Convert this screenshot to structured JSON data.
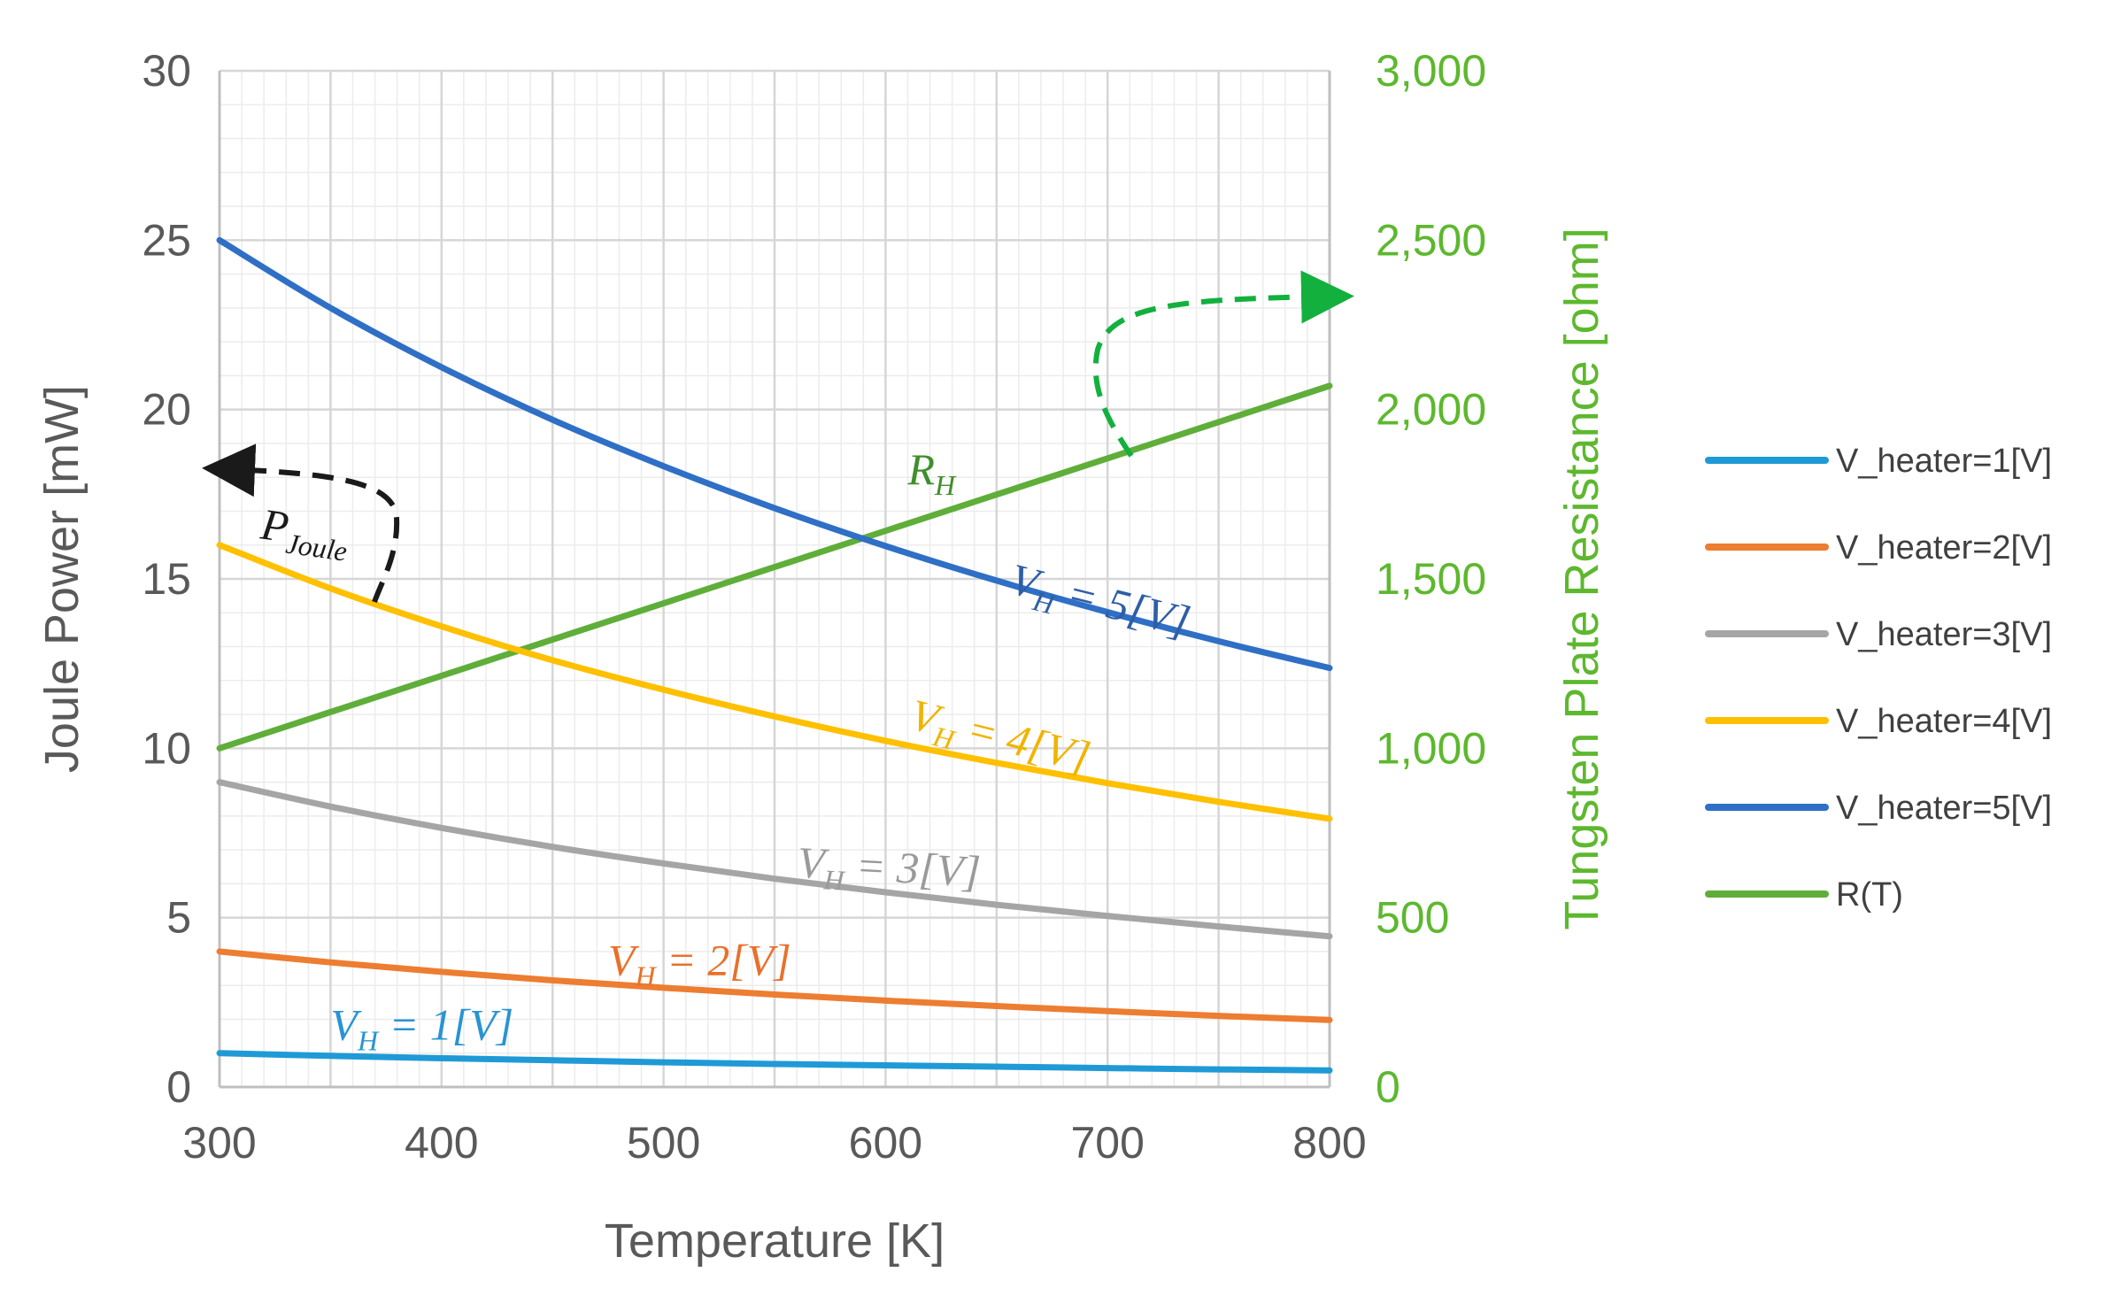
{
  "chart_data": {
    "type": "line",
    "xlabel": "Temperature [K]",
    "ylabel": "Joule Power [mW]",
    "y2label": "Tungsten Plate Resistance [ohm]",
    "xlim": [
      300,
      800
    ],
    "ylim": [
      0,
      30
    ],
    "y2lim": [
      0,
      3000
    ],
    "x_ticks": [
      "300",
      "400",
      "500",
      "600",
      "700",
      "800"
    ],
    "y_ticks": [
      "0",
      "5",
      "10",
      "15",
      "20",
      "25",
      "30"
    ],
    "y2_ticks": [
      "0",
      "500",
      "1,000",
      "1,500",
      "2,000",
      "2,500",
      "3,000"
    ],
    "grid": true,
    "legend_position": "right",
    "series": [
      {
        "name": "V_heater=1[V]",
        "axis": "left",
        "color": "#1f9ad6",
        "x": [
          300,
          350,
          400,
          450,
          500,
          550,
          600,
          650,
          700,
          750,
          800
        ],
        "values": [
          1.0,
          0.92,
          0.85,
          0.79,
          0.73,
          0.68,
          0.64,
          0.6,
          0.56,
          0.52,
          0.49
        ]
      },
      {
        "name": "V_heater=2[V]",
        "axis": "left",
        "color": "#ed7d31",
        "x": [
          300,
          350,
          400,
          450,
          500,
          550,
          600,
          650,
          700,
          750,
          800
        ],
        "values": [
          4.0,
          3.68,
          3.4,
          3.15,
          2.93,
          2.73,
          2.55,
          2.39,
          2.24,
          2.1,
          1.98
        ]
      },
      {
        "name": "V_heater=3[V]",
        "axis": "left",
        "color": "#a5a5a5",
        "x": [
          300,
          350,
          400,
          450,
          500,
          550,
          600,
          650,
          700,
          750,
          800
        ],
        "values": [
          9.0,
          8.28,
          7.65,
          7.09,
          6.6,
          6.15,
          5.75,
          5.38,
          5.05,
          4.74,
          4.45
        ]
      },
      {
        "name": "V_heater=4[V]",
        "axis": "left",
        "color": "#ffc000",
        "x": [
          300,
          350,
          400,
          450,
          500,
          550,
          600,
          650,
          700,
          750,
          800
        ],
        "values": [
          16.0,
          14.72,
          13.6,
          12.6,
          11.73,
          10.94,
          10.22,
          9.57,
          8.97,
          8.42,
          7.92
        ]
      },
      {
        "name": "V_heater=5[V]",
        "axis": "left",
        "color": "#2f6fc5",
        "x": [
          300,
          350,
          400,
          450,
          500,
          550,
          600,
          650,
          700,
          750,
          800
        ],
        "values": [
          25.0,
          23.0,
          21.25,
          19.7,
          18.33,
          17.09,
          15.97,
          14.95,
          14.02,
          13.16,
          12.37
        ]
      },
      {
        "name": "R(T)",
        "axis": "right",
        "color": "#5fae3a",
        "x": [
          300,
          350,
          400,
          450,
          500,
          550,
          600,
          650,
          700,
          750,
          800
        ],
        "values": [
          1000,
          1107,
          1214,
          1321,
          1428,
          1535,
          1642,
          1749,
          1856,
          1963,
          2070
        ]
      }
    ],
    "annotations": [
      {
        "text": "P_Joule",
        "axis": "left",
        "x": 318,
        "y": 16.2,
        "color": "#1a1a1a",
        "angle": 8
      },
      {
        "text": "R_H",
        "axis": "right",
        "x": 610,
        "y": 1780,
        "color": "#3f8f2a",
        "angle": 0
      },
      {
        "text": "V_H = 5[V]",
        "axis": "left",
        "x": 655,
        "y": 14.6,
        "color": "#2e5ea8",
        "angle": 14
      },
      {
        "text": "V_H = 4[V]",
        "axis": "left",
        "x": 610,
        "y": 10.6,
        "color": "#f0b400",
        "angle": 14
      },
      {
        "text": "V_H = 3[V]",
        "axis": "left",
        "x": 560,
        "y": 6.2,
        "color": "#9a9a9a",
        "angle": 3
      },
      {
        "text": "V_H = 2[V]",
        "axis": "left",
        "x": 475,
        "y": 3.3,
        "color": "#e9702b",
        "angle": 0
      },
      {
        "text": "V_H = 1[V]",
        "axis": "left",
        "x": 350,
        "y": 1.4,
        "color": "#2894d2",
        "angle": 0
      }
    ]
  }
}
